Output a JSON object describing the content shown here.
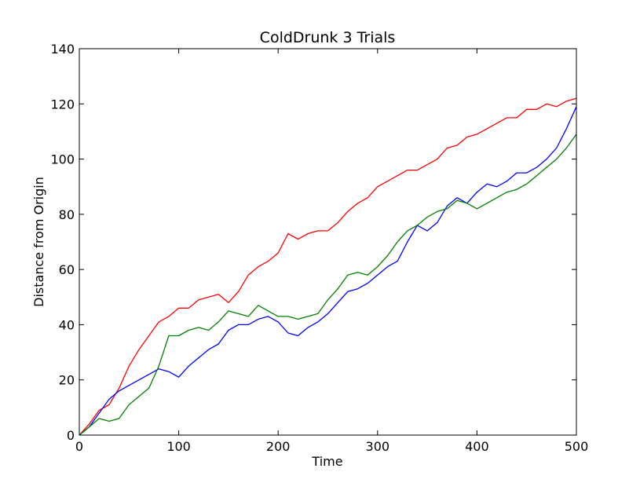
{
  "chart_data": {
    "type": "line",
    "title": "ColdDrunk 3 Trials",
    "xlabel": "Time",
    "ylabel": "Distance from Origin",
    "xlim": [
      0,
      500
    ],
    "ylim": [
      0,
      140
    ],
    "xticks": [
      0,
      100,
      200,
      300,
      400,
      500
    ],
    "yticks": [
      0,
      20,
      40,
      60,
      80,
      100,
      120,
      140
    ],
    "grid": false,
    "legend": "none",
    "series": [
      {
        "color": "#ff0000",
        "x": [
          0,
          10,
          20,
          30,
          40,
          50,
          60,
          70,
          80,
          90,
          100,
          110,
          120,
          130,
          140,
          150,
          160,
          170,
          180,
          190,
          200,
          210,
          220,
          230,
          240,
          250,
          260,
          270,
          280,
          290,
          300,
          310,
          320,
          330,
          340,
          350,
          360,
          370,
          380,
          390,
          400,
          410,
          420,
          430,
          440,
          450,
          460,
          470,
          480,
          490,
          500
        ],
        "y": [
          0,
          4,
          9,
          11,
          17,
          25,
          31,
          36,
          41,
          43,
          46,
          46,
          49,
          50,
          51,
          48,
          52,
          58,
          61,
          63,
          66,
          73,
          71,
          73,
          74,
          74,
          77,
          81,
          84,
          86,
          90,
          92,
          94,
          96,
          96,
          98,
          100,
          104,
          105,
          108,
          109,
          111,
          113,
          115,
          115,
          118,
          118,
          120,
          119,
          121,
          122
        ]
      },
      {
        "color": "#0000ff",
        "x": [
          0,
          10,
          20,
          30,
          40,
          50,
          60,
          70,
          80,
          90,
          100,
          110,
          120,
          130,
          140,
          150,
          160,
          170,
          180,
          190,
          200,
          210,
          220,
          230,
          240,
          250,
          260,
          270,
          280,
          290,
          300,
          310,
          320,
          330,
          340,
          350,
          360,
          370,
          380,
          390,
          400,
          410,
          420,
          430,
          440,
          450,
          460,
          470,
          480,
          490,
          500
        ],
        "y": [
          0,
          3,
          8,
          13,
          16,
          18,
          20,
          22,
          24,
          23,
          21,
          25,
          28,
          31,
          33,
          38,
          40,
          40,
          42,
          43,
          41,
          37,
          36,
          39,
          41,
          44,
          48,
          52,
          53,
          55,
          58,
          61,
          63,
          70,
          76,
          74,
          77,
          83,
          86,
          84,
          88,
          91,
          90,
          92,
          95,
          95,
          97,
          100,
          104,
          111,
          119
        ]
      },
      {
        "color": "#008000",
        "x": [
          0,
          10,
          20,
          30,
          40,
          50,
          60,
          70,
          80,
          90,
          100,
          110,
          120,
          130,
          140,
          150,
          160,
          170,
          180,
          190,
          200,
          210,
          220,
          230,
          240,
          250,
          260,
          270,
          280,
          290,
          300,
          310,
          320,
          330,
          340,
          350,
          360,
          370,
          380,
          390,
          400,
          410,
          420,
          430,
          440,
          450,
          460,
          470,
          480,
          490,
          500
        ],
        "y": [
          0,
          3,
          6,
          5,
          6,
          11,
          14,
          17,
          25,
          36,
          36,
          38,
          39,
          38,
          41,
          45,
          44,
          43,
          47,
          45,
          43,
          43,
          42,
          43,
          44,
          49,
          53,
          58,
          59,
          58,
          61,
          65,
          70,
          74,
          76,
          79,
          81,
          82,
          85,
          84,
          82,
          84,
          86,
          88,
          89,
          91,
          94,
          97,
          100,
          104,
          109
        ]
      }
    ]
  }
}
